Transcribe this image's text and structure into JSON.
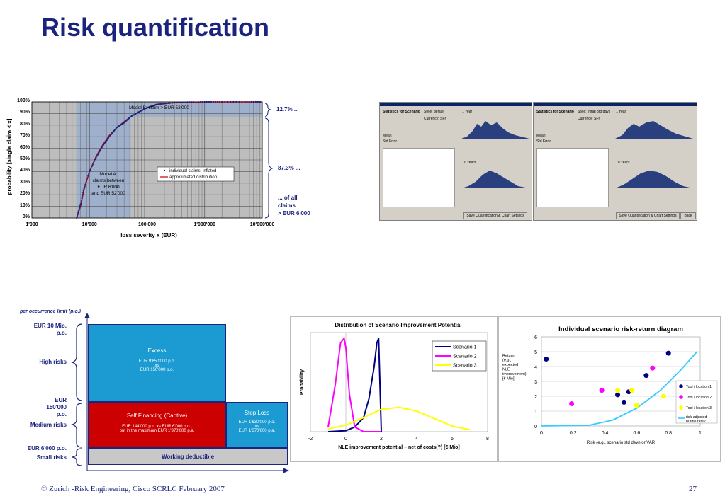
{
  "slide_title": "Risk quantification",
  "footer": {
    "text": "© Zurich  -Risk Engineering, Cisco SCRLC February 2007",
    "page": "27"
  },
  "chart1": {
    "ylabel": "probability [single claim < x]",
    "xlabel": "loss severity x (EUR)",
    "y_ticks": [
      "100%",
      "90%",
      "80%",
      "70%",
      "60%",
      "50%",
      "40%",
      "30%",
      "20%",
      "10%",
      "0%"
    ],
    "x_ticks": [
      "1'000",
      "10'000",
      "100'000",
      "1'000'000",
      "10'000'000"
    ],
    "model_b": "Model B: claim > EUR 52'000",
    "model_a": [
      "Model A:",
      "claims between",
      "EUR 6'000",
      "and EUR 52'000"
    ],
    "legend": [
      "individual claims, inflated",
      "approximated distribution"
    ],
    "brace_labels": [
      "12.7% ...",
      "87.3% ...",
      "... of all",
      "claims",
      "> EUR 6'000"
    ],
    "colors": {
      "claims": "#1a237e",
      "fit": "#c00000",
      "band": "#9fb0cc"
    }
  },
  "chart_data": [
    {
      "type": "line",
      "title": "",
      "xlabel": "loss severity x (EUR)",
      "ylabel": "probability [single claim < x]",
      "xscale": "log",
      "xlim": [
        1000,
        10000000
      ],
      "ylim": [
        0,
        1
      ],
      "series": [
        {
          "name": "individual claims, inflated",
          "x": [
            6000,
            7000,
            8000,
            10000,
            13000,
            17000,
            22000,
            30000,
            40000,
            52000,
            70000,
            100000,
            150000,
            250000,
            500000,
            1000000,
            2000000,
            5000000,
            10000000
          ],
          "y": [
            0.0,
            0.12,
            0.25,
            0.4,
            0.52,
            0.62,
            0.7,
            0.78,
            0.82,
            0.873,
            0.91,
            0.95,
            0.98,
            0.99,
            0.998,
            1.0,
            1.0,
            1.0,
            1.0
          ]
        },
        {
          "name": "approximated distribution",
          "x": [
            6000,
            7000,
            8000,
            10000,
            13000,
            17000,
            22000,
            30000,
            40000,
            52000,
            70000,
            100000,
            150000,
            250000,
            500000,
            1000000,
            2000000,
            5000000,
            10000000
          ],
          "y": [
            0.0,
            0.1,
            0.24,
            0.4,
            0.53,
            0.63,
            0.71,
            0.78,
            0.83,
            0.873,
            0.91,
            0.95,
            0.975,
            0.99,
            0.997,
            1.0,
            1.0,
            1.0,
            1.0
          ]
        }
      ]
    },
    {
      "type": "line",
      "title": "Distribution of Scenario Improvement Potential",
      "xlabel": "NLE improvement potential – net of costs(?) [€ Mio]",
      "ylabel": "Probability",
      "xlim": [
        -2,
        8
      ],
      "x_ticks": [
        "-2",
        "0",
        "2",
        "4",
        "6",
        "8"
      ],
      "series": [
        {
          "name": "Scenario 1",
          "color": "#000080",
          "x": [
            -1,
            0,
            0.5,
            1,
            1.3,
            1.6,
            1.75,
            1.85,
            2.0
          ],
          "y": [
            0,
            0.01,
            0.05,
            0.15,
            0.35,
            0.7,
            0.95,
            1.0,
            0
          ]
        },
        {
          "name": "Scenario 2",
          "color": "#ff00ff",
          "x": [
            -1,
            -0.6,
            -0.3,
            -0.1,
            0,
            0.2,
            0.5,
            1,
            2
          ],
          "y": [
            0.05,
            0.5,
            0.95,
            1.0,
            0.9,
            0.4,
            0.05,
            0,
            0
          ]
        },
        {
          "name": "Scenario 3",
          "color": "#ffff00",
          "x": [
            -1,
            0,
            1,
            2,
            3,
            4,
            5,
            6,
            7
          ],
          "y": [
            0.03,
            0.07,
            0.15,
            0.24,
            0.26,
            0.22,
            0.14,
            0.06,
            0.02
          ]
        }
      ]
    },
    {
      "type": "scatter",
      "title": "Individual scenario risk-return diagram",
      "xlabel": "Risk (e.g., scenario std devn or VAR",
      "ylabel": [
        "Return",
        "(e.g.,",
        "expected",
        "NLE",
        "improvement)",
        "[€ Mio])"
      ],
      "xlim": [
        0,
        1
      ],
      "ylim": [
        0,
        6
      ],
      "x_ticks": [
        "0",
        "0.2",
        "0.4",
        "0.6",
        "0.8",
        "1"
      ],
      "y_ticks": [
        "0",
        "1",
        "2",
        "3",
        "4",
        "5",
        "6"
      ],
      "series": [
        {
          "name": "Tool / location 1",
          "color": "#000080",
          "x": [
            0.03,
            0.48,
            0.52,
            0.55,
            0.66,
            0.8
          ],
          "y": [
            4.5,
            2.1,
            1.6,
            2.3,
            3.4,
            4.9
          ]
        },
        {
          "name": "Tool / location 2",
          "color": "#ff00ff",
          "x": [
            0.19,
            0.38,
            0.7
          ],
          "y": [
            1.5,
            2.4,
            3.9
          ]
        },
        {
          "name": "Tool / location 3",
          "color": "#ffff00",
          "x": [
            0.48,
            0.57,
            0.6,
            0.77
          ],
          "y": [
            2.4,
            2.4,
            1.4,
            2.0
          ]
        },
        {
          "name": "risk-adjusted hurdle rate?",
          "color": "#33ccff",
          "x": [
            0,
            0.3,
            0.45,
            0.6,
            0.75,
            0.88,
            0.98
          ],
          "y": [
            0,
            0.05,
            0.4,
            1.2,
            2.4,
            3.8,
            5.0
          ]
        }
      ]
    }
  ],
  "dialogs": [
    {
      "stats_label": "Statistics for Scenario",
      "style_label": "Style: default",
      "currency": "Currency: SFr",
      "year": "1 Year",
      "years10": "10 Years",
      "mean": "Mean",
      "std": "Std Error",
      "buttons": [
        "Save Quantification & Chart Settings"
      ]
    },
    {
      "stats_label": "Statistics for Scenario",
      "style_label": "Style: Initial 3rd days",
      "currency": "Currency: SFr",
      "year": "1 Year",
      "years10": "10 Years",
      "mean": "Mean",
      "std": "Std Error",
      "buttons": [
        "Save Quantification & Chart Settings",
        "Back"
      ]
    }
  ],
  "layers": {
    "header": "per occurrence limit (p.o.)",
    "left_labels": [
      "EUR 10 Mio.",
      "p.o.",
      "High risks",
      "EUR",
      "150'000",
      "p.o.",
      "Medium risks",
      "EUR 6'000 p.o.",
      "Small risks"
    ],
    "excess_title": "Excess",
    "excess_lines": [
      "EUR 9'850'000 p.o.",
      "xs",
      "EUR 150'000 p.o."
    ],
    "self_title": "Self Financing (Captive)",
    "self_lines": [
      "EUR 144'000 p.o. xs EUR 6'000 p.o.,",
      "but in the maximum EUR 1'370'000 p.a."
    ],
    "stop_title": "Stop Loss",
    "stop_lines": [
      "EUR 1'630'000 p.a.",
      "xs",
      "EUR 1'370'000 p.a."
    ],
    "deductible": "Working deductible",
    "colors": {
      "excess": "#1b9bd1",
      "self": "#cc0000",
      "stop": "#1b9bd1",
      "deductible": "#c8c8c8"
    }
  }
}
